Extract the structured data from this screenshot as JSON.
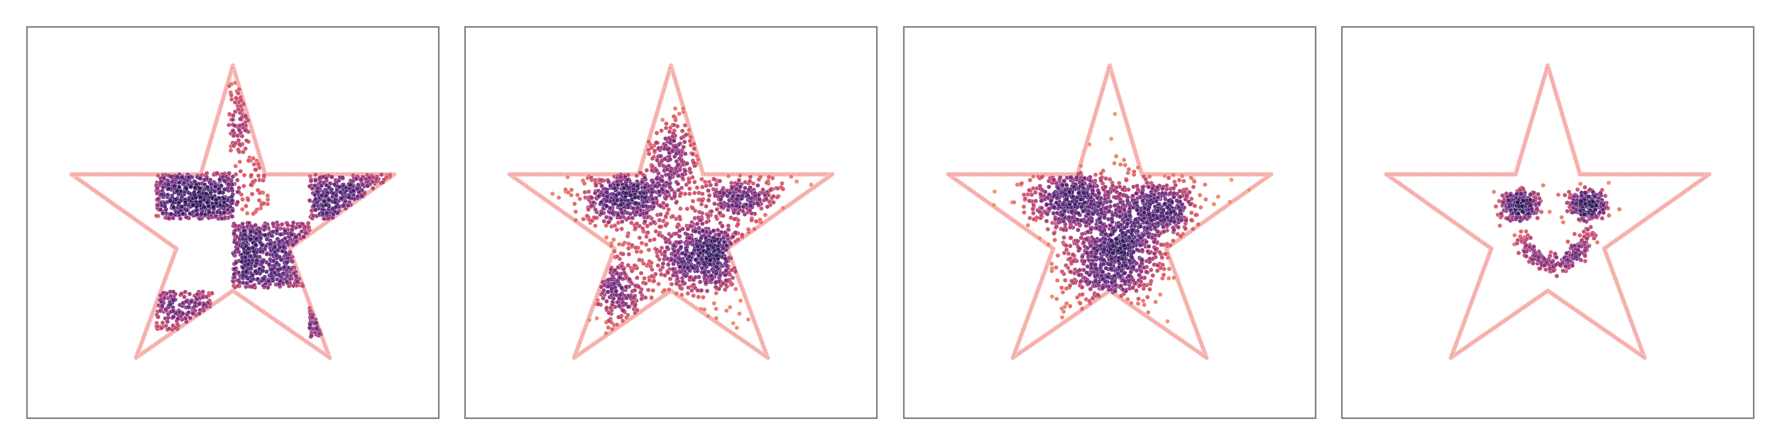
{
  "chart_data": [
    {
      "type": "scatter",
      "panel": "panel-1",
      "title": "",
      "xlabel": "",
      "ylabel": "",
      "xlim": [
        0,
        1
      ],
      "ylim": [
        0,
        1
      ],
      "grid": false,
      "legend": "none",
      "boundary": {
        "shape": "five-point star",
        "color": "#f4a3a0",
        "vertices": [
          [
            0.5,
            0.91
          ],
          [
            0.58,
            0.626
          ],
          [
            0.9,
            0.626
          ],
          [
            0.64,
            0.432
          ],
          [
            0.74,
            0.147
          ],
          [
            0.5,
            0.322
          ],
          [
            0.26,
            0.147
          ],
          [
            0.36,
            0.432
          ],
          [
            0.1,
            0.626
          ],
          [
            0.42,
            0.626
          ]
        ]
      },
      "series": [
        {
          "name": "block-left",
          "distribution": "uniform-rect",
          "x": [
            0.31,
            0.5
          ],
          "y": [
            0.51,
            0.63
          ],
          "n": 520,
          "density_center": [
            0.39,
            0.58
          ]
        },
        {
          "name": "block-top-spike",
          "distribution": "uniform-rect",
          "x": [
            0.49,
            0.54
          ],
          "y": [
            0.68,
            0.87
          ],
          "n": 80,
          "density_center": [
            0.51,
            0.78
          ]
        },
        {
          "name": "block-top-mid",
          "distribution": "uniform-rect",
          "x": [
            0.5,
            0.59
          ],
          "y": [
            0.52,
            0.67
          ],
          "n": 60,
          "density_center": [
            0.52,
            0.55
          ]
        },
        {
          "name": "block-center",
          "distribution": "uniform-rect",
          "x": [
            0.5,
            0.69
          ],
          "y": [
            0.33,
            0.5
          ],
          "n": 560,
          "density_center": [
            0.58,
            0.42
          ]
        },
        {
          "name": "block-right",
          "distribution": "uniform-rect",
          "x": [
            0.69,
            0.89
          ],
          "y": [
            0.51,
            0.63
          ],
          "n": 300,
          "density_center": [
            0.76,
            0.58
          ]
        },
        {
          "name": "block-left-low",
          "distribution": "uniform-rect",
          "x": [
            0.31,
            0.45
          ],
          "y": [
            0.22,
            0.32
          ],
          "n": 170,
          "density_center": [
            0.36,
            0.28
          ]
        },
        {
          "name": "block-right-low",
          "distribution": "uniform-rect",
          "x": [
            0.69,
            0.73
          ],
          "y": [
            0.2,
            0.32
          ],
          "n": 60,
          "density_center": [
            0.7,
            0.28
          ]
        }
      ]
    },
    {
      "type": "scatter",
      "panel": "panel-2",
      "title": "",
      "xlabel": "",
      "ylabel": "",
      "xlim": [
        0,
        1
      ],
      "ylim": [
        0,
        1
      ],
      "grid": false,
      "legend": "none",
      "boundary": {
        "shape": "five-point star",
        "color": "#f4a3a0",
        "vertices": [
          [
            0.5,
            0.91
          ],
          [
            0.58,
            0.626
          ],
          [
            0.9,
            0.626
          ],
          [
            0.64,
            0.432
          ],
          [
            0.74,
            0.147
          ],
          [
            0.5,
            0.322
          ],
          [
            0.26,
            0.147
          ],
          [
            0.36,
            0.432
          ],
          [
            0.1,
            0.626
          ],
          [
            0.42,
            0.626
          ]
        ]
      },
      "series": [
        {
          "name": "cluster-left",
          "distribution": "gaussian",
          "center": [
            0.39,
            0.57
          ],
          "spread": [
            0.06,
            0.04
          ],
          "n": 420
        },
        {
          "name": "cluster-center",
          "distribution": "gaussian",
          "center": [
            0.58,
            0.41
          ],
          "spread": [
            0.06,
            0.05
          ],
          "n": 480
        },
        {
          "name": "cluster-right",
          "distribution": "gaussian",
          "center": [
            0.67,
            0.57
          ],
          "spread": [
            0.05,
            0.03
          ],
          "n": 220
        },
        {
          "name": "cluster-top",
          "distribution": "gaussian",
          "center": [
            0.51,
            0.68
          ],
          "spread": [
            0.03,
            0.05
          ],
          "n": 160
        },
        {
          "name": "cluster-bottom-left",
          "distribution": "gaussian",
          "center": [
            0.37,
            0.32
          ],
          "spread": [
            0.04,
            0.05
          ],
          "n": 200
        },
        {
          "name": "scatter-diffuse",
          "distribution": "gaussian",
          "center": [
            0.52,
            0.48
          ],
          "spread": [
            0.13,
            0.12
          ],
          "n": 320
        }
      ]
    },
    {
      "type": "scatter",
      "panel": "panel-3",
      "title": "",
      "xlabel": "",
      "ylabel": "",
      "xlim": [
        0,
        1
      ],
      "ylim": [
        0,
        1
      ],
      "grid": false,
      "legend": "none",
      "boundary": {
        "shape": "five-point star",
        "color": "#f4a3a0",
        "vertices": [
          [
            0.5,
            0.91
          ],
          [
            0.58,
            0.626
          ],
          [
            0.9,
            0.626
          ],
          [
            0.64,
            0.432
          ],
          [
            0.74,
            0.147
          ],
          [
            0.5,
            0.322
          ],
          [
            0.26,
            0.147
          ],
          [
            0.36,
            0.432
          ],
          [
            0.1,
            0.626
          ],
          [
            0.42,
            0.626
          ]
        ]
      },
      "series": [
        {
          "name": "cluster-left",
          "distribution": "gaussian",
          "center": [
            0.41,
            0.56
          ],
          "spread": [
            0.05,
            0.04
          ],
          "n": 420
        },
        {
          "name": "cluster-right",
          "distribution": "gaussian",
          "center": [
            0.62,
            0.54
          ],
          "spread": [
            0.05,
            0.04
          ],
          "n": 360
        },
        {
          "name": "cluster-middle",
          "distribution": "gaussian",
          "center": [
            0.53,
            0.44
          ],
          "spread": [
            0.06,
            0.04
          ],
          "n": 300
        },
        {
          "name": "band-lower",
          "distribution": "gaussian",
          "center": [
            0.5,
            0.36
          ],
          "spread": [
            0.06,
            0.04
          ],
          "n": 300
        },
        {
          "name": "scatter-diffuse",
          "distribution": "gaussian",
          "center": [
            0.5,
            0.5
          ],
          "spread": [
            0.12,
            0.09
          ],
          "n": 300
        }
      ]
    },
    {
      "type": "scatter",
      "panel": "panel-4",
      "title": "",
      "xlabel": "",
      "ylabel": "",
      "xlim": [
        0,
        1
      ],
      "ylim": [
        0,
        1
      ],
      "grid": false,
      "legend": "none",
      "boundary": {
        "shape": "five-point star",
        "color": "#f4a3a0",
        "vertices": [
          [
            0.5,
            0.91
          ],
          [
            0.58,
            0.626
          ],
          [
            0.9,
            0.626
          ],
          [
            0.64,
            0.432
          ],
          [
            0.74,
            0.147
          ],
          [
            0.5,
            0.322
          ],
          [
            0.26,
            0.147
          ],
          [
            0.36,
            0.432
          ],
          [
            0.1,
            0.626
          ],
          [
            0.42,
            0.626
          ]
        ]
      },
      "series": [
        {
          "name": "eye-left",
          "distribution": "gaussian",
          "center": [
            0.43,
            0.545
          ],
          "spread": [
            0.025,
            0.02
          ],
          "n": 220
        },
        {
          "name": "eye-right",
          "distribution": "gaussian",
          "center": [
            0.6,
            0.545
          ],
          "spread": [
            0.025,
            0.02
          ],
          "n": 220
        },
        {
          "name": "smile",
          "distribution": "arc",
          "center": [
            0.515,
            0.5
          ],
          "radius": [
            0.085,
            0.11
          ],
          "angle_deg": [
            200,
            345
          ],
          "thickness": 0.012,
          "n": 240
        }
      ]
    }
  ]
}
